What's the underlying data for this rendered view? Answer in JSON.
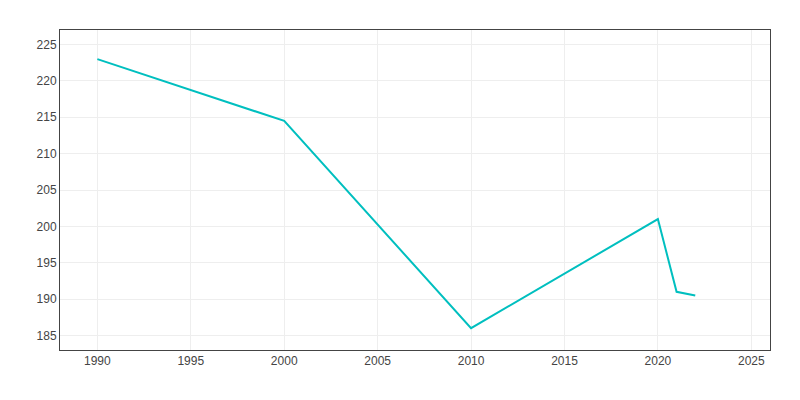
{
  "chart_data": {
    "type": "line",
    "x": [
      1990,
      2000,
      2010,
      2020,
      2021,
      2022
    ],
    "values": [
      223,
      214.5,
      186,
      201,
      191,
      190.5
    ],
    "color": "#00BFBF",
    "xlim": [
      1988,
      2026
    ],
    "ylim": [
      183,
      227
    ],
    "xticks": [
      1990,
      1995,
      2000,
      2005,
      2010,
      2015,
      2020,
      2025
    ],
    "yticks": [
      185,
      190,
      195,
      200,
      205,
      210,
      215,
      220,
      225
    ],
    "grid": true
  }
}
